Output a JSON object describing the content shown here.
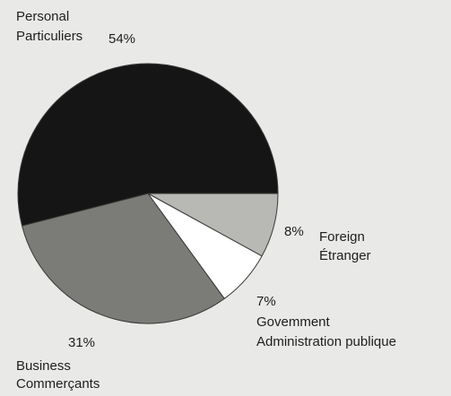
{
  "chart_data": {
    "type": "pie",
    "start_angle_deg": 0,
    "direction": "clockwise",
    "slices": [
      {
        "key": "foreign",
        "label_en": "Foreign",
        "label_fr": "Étranger",
        "value": 8,
        "value_label": "8%",
        "color": "#b8b8b4"
      },
      {
        "key": "government",
        "label_en": "Govemment",
        "label_fr": "Administration publique",
        "value": 7,
        "value_label": "7%",
        "color": "#ffffff"
      },
      {
        "key": "business",
        "label_en": "Business",
        "label_fr": "Commerçants",
        "value": 31,
        "value_label": "31%",
        "color": "#7b7b78"
      },
      {
        "key": "personal",
        "label_en": "Personal",
        "label_fr": "Particuliers",
        "value": 54,
        "value_label": "54%",
        "color": "#151515"
      }
    ]
  }
}
